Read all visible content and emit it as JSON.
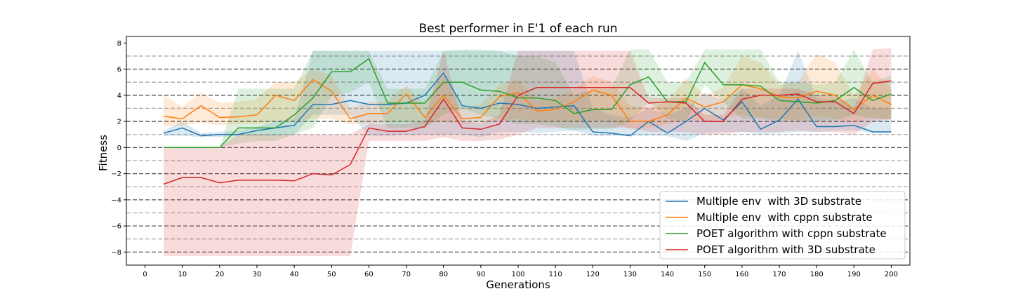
{
  "chart_data": {
    "type": "line",
    "title": "Best performer in E'1 of each run",
    "xlabel": "Generations",
    "ylabel": "Fitness",
    "xlim": [
      -5,
      205
    ],
    "ylim": [
      -9,
      8.5
    ],
    "xticks": [
      0,
      10,
      20,
      30,
      40,
      50,
      60,
      70,
      80,
      90,
      100,
      110,
      120,
      130,
      140,
      150,
      160,
      170,
      180,
      190,
      200
    ],
    "yticks": [
      -8,
      -6,
      -4,
      -2,
      0,
      2,
      4,
      6,
      8
    ],
    "grid": {
      "horizontal_lines": [
        -8,
        -7,
        -6,
        -5,
        -4,
        -3,
        -2,
        -1,
        0,
        1,
        2,
        3,
        4,
        5,
        6,
        7
      ],
      "style": "dashed"
    },
    "legend": {
      "position": "lower-right"
    },
    "x": [
      5,
      10,
      15,
      20,
      25,
      30,
      35,
      40,
      45,
      50,
      55,
      60,
      65,
      70,
      75,
      80,
      85,
      90,
      95,
      100,
      105,
      110,
      115,
      120,
      125,
      130,
      135,
      140,
      145,
      150,
      155,
      160,
      165,
      170,
      175,
      180,
      185,
      190,
      195,
      200
    ],
    "series": [
      {
        "name": "Multiple env  with 3D substrate",
        "color": "#1f77b4",
        "values": [
          1.1,
          1.5,
          0.9,
          1.0,
          1.0,
          1.3,
          1.5,
          1.7,
          3.3,
          3.3,
          3.6,
          3.3,
          3.3,
          3.4,
          4.0,
          5.7,
          3.2,
          3.0,
          3.4,
          3.3,
          3.0,
          3.1,
          3.2,
          1.2,
          1.1,
          0.9,
          2.0,
          1.1,
          2.0,
          3.0,
          2.1,
          3.5,
          1.4,
          2.1,
          3.7,
          1.6,
          1.6,
          1.7,
          1.2,
          1.2
        ],
        "band_lower": [
          0.9,
          0.9,
          0.8,
          0.8,
          0.9,
          0.9,
          0.9,
          1.0,
          2.5,
          2.5,
          2.5,
          0.9,
          0.9,
          1.0,
          1.0,
          1.0,
          1.0,
          0.8,
          1.2,
          1.2,
          1.1,
          1.2,
          1.3,
          0.9,
          0.9,
          0.9,
          0.9,
          0.9,
          0.5,
          1.1,
          1.2,
          1.2,
          1.0,
          1.1,
          1.2,
          1.2,
          1.3,
          1.3,
          1.1,
          1.1
        ],
        "band_upper": [
          1.3,
          2.0,
          1.1,
          1.2,
          1.3,
          1.6,
          2.0,
          2.2,
          7.4,
          7.4,
          7.4,
          7.4,
          7.4,
          7.4,
          7.4,
          7.4,
          7.4,
          7.4,
          7.4,
          7.4,
          7.4,
          7.4,
          7.4,
          3.0,
          2.5,
          2.3,
          3.0,
          2.5,
          3.0,
          4.2,
          3.6,
          4.5,
          3.2,
          4.0,
          7.4,
          3.8,
          3.5,
          3.8,
          3.0,
          3.0
        ]
      },
      {
        "name": "Multiple env  with cppn substrate",
        "color": "#ff7f0e",
        "values": [
          2.4,
          2.2,
          3.2,
          2.3,
          2.35,
          2.5,
          4.0,
          3.6,
          5.2,
          4.3,
          2.2,
          2.6,
          2.6,
          4.1,
          2.3,
          4.0,
          2.2,
          2.3,
          3.9,
          4.2,
          2.8,
          2.9,
          3.5,
          4.4,
          4.0,
          2.0,
          2.0,
          2.5,
          3.8,
          3.1,
          3.5,
          4.8,
          4.5,
          3.9,
          3.8,
          4.3,
          4.0,
          2.9,
          4.0,
          3.3
        ],
        "band_lower": [
          1.6,
          1.7,
          1.9,
          1.7,
          1.8,
          1.8,
          2.0,
          2.0,
          2.2,
          2.2,
          1.8,
          1.8,
          1.9,
          2.0,
          1.8,
          2.0,
          1.8,
          1.8,
          2.1,
          2.2,
          2.0,
          2.0,
          2.0,
          2.1,
          2.0,
          1.4,
          1.5,
          1.8,
          2.2,
          2.0,
          2.2,
          2.5,
          2.3,
          2.2,
          2.1,
          2.4,
          2.2,
          1.9,
          2.3,
          2.1
        ],
        "band_upper": [
          4.0,
          3.1,
          4.2,
          3.4,
          3.5,
          3.7,
          5.0,
          5.0,
          6.0,
          5.5,
          3.0,
          3.5,
          3.5,
          4.8,
          3.2,
          5.5,
          3.0,
          3.3,
          4.8,
          5.2,
          3.6,
          3.8,
          4.5,
          5.5,
          5.0,
          3.2,
          3.0,
          3.5,
          5.3,
          4.0,
          4.6,
          7.0,
          6.5,
          4.8,
          5.0,
          7.2,
          6.5,
          4.0,
          6.0,
          4.5
        ]
      },
      {
        "name": "POET algorithm with cppn substrate",
        "color": "#2ca02c",
        "values": [
          0.0,
          0.0,
          0.0,
          0.0,
          1.5,
          1.5,
          1.5,
          2.5,
          3.8,
          5.8,
          5.8,
          6.8,
          3.4,
          3.4,
          3.4,
          5.0,
          5.0,
          4.4,
          4.3,
          3.8,
          3.8,
          3.6,
          2.6,
          2.9,
          2.9,
          4.8,
          5.4,
          3.5,
          3.5,
          6.5,
          4.8,
          4.8,
          4.7,
          3.6,
          3.5,
          3.4,
          3.6,
          4.6,
          3.6,
          4.1
        ],
        "band_lower": [
          0.0,
          0.0,
          0.0,
          0.0,
          0.3,
          0.5,
          0.5,
          1.0,
          1.5,
          4.0,
          4.2,
          5.0,
          1.5,
          1.5,
          1.5,
          2.5,
          3.0,
          2.5,
          2.2,
          1.8,
          1.8,
          1.6,
          1.3,
          1.4,
          1.4,
          2.0,
          3.5,
          2.2,
          2.0,
          4.8,
          3.5,
          2.2,
          2.2,
          2.0,
          2.0,
          2.0,
          2.1,
          2.5,
          2.2,
          2.2
        ],
        "band_upper": [
          0.0,
          0.0,
          0.0,
          0.0,
          4.5,
          4.5,
          4.5,
          4.5,
          7.4,
          7.4,
          7.4,
          7.4,
          4.5,
          4.5,
          4.5,
          7.4,
          7.5,
          7.5,
          7.4,
          7.0,
          7.0,
          6.5,
          4.0,
          4.5,
          4.5,
          7.5,
          7.5,
          5.0,
          5.0,
          7.5,
          7.5,
          7.5,
          7.5,
          5.0,
          5.0,
          4.8,
          5.0,
          7.5,
          5.0,
          5.5
        ]
      },
      {
        "name": "POET algorithm with 3D substrate",
        "color": "#d62728",
        "values": [
          -2.8,
          -2.3,
          -2.3,
          -2.7,
          -2.5,
          -2.5,
          -2.5,
          -2.55,
          -2.0,
          -2.1,
          -1.3,
          1.5,
          1.25,
          1.25,
          1.6,
          3.7,
          1.5,
          1.4,
          1.8,
          4.0,
          4.6,
          4.6,
          4.6,
          4.6,
          4.6,
          4.6,
          3.4,
          3.5,
          3.4,
          2.0,
          2.0,
          3.7,
          4.0,
          4.0,
          4.1,
          3.5,
          3.5,
          2.6,
          4.9,
          5.1
        ],
        "band_lower": [
          -8.3,
          -8.3,
          -8.3,
          -8.3,
          -8.3,
          -8.3,
          -8.3,
          -8.3,
          -8.3,
          -8.3,
          -8.3,
          0.5,
          0.5,
          0.5,
          0.5,
          0.8,
          0.5,
          0.5,
          0.6,
          1.0,
          1.5,
          1.5,
          1.5,
          1.5,
          1.5,
          1.5,
          1.2,
          1.2,
          1.2,
          1.0,
          1.0,
          1.2,
          1.2,
          1.2,
          1.3,
          1.2,
          1.2,
          1.0,
          2.0,
          2.2
        ],
        "band_upper": [
          0.0,
          0.0,
          0.0,
          0.0,
          1.0,
          1.0,
          1.0,
          1.0,
          1.0,
          1.0,
          1.0,
          1.8,
          1.8,
          1.8,
          2.0,
          7.4,
          2.0,
          1.8,
          2.5,
          7.4,
          7.4,
          7.4,
          7.4,
          7.4,
          7.4,
          7.4,
          3.8,
          3.8,
          3.8,
          2.5,
          2.5,
          4.5,
          4.5,
          4.5,
          4.5,
          4.0,
          4.0,
          3.0,
          7.5,
          7.6
        ]
      }
    ]
  }
}
